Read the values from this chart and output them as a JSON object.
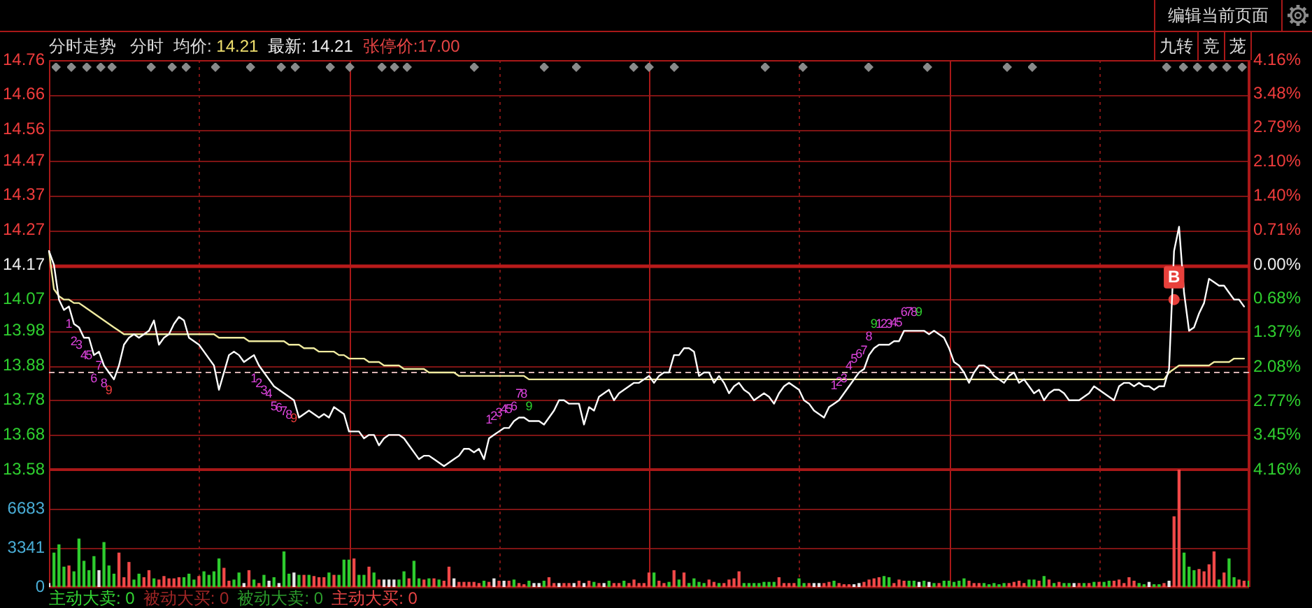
{
  "chart_data": [
    {
      "type": "line",
      "title": "分时走势",
      "annotations": [
        "分时",
        "均价: 14.21",
        "最新: 14.21",
        "张停价:17.00",
        "编辑当前页面",
        "九转",
        "竞",
        "茏",
        "1",
        "2",
        "3",
        "4",
        "5",
        "6",
        "7",
        "8",
        "9",
        "1",
        "2",
        "3",
        "4",
        "5",
        "6",
        "7",
        "8",
        "9",
        "1",
        "2",
        "3",
        "4",
        "5",
        "6",
        "7",
        "8",
        "9",
        "1",
        "2",
        "3",
        "4",
        "5",
        "6",
        "7",
        "8",
        "9",
        "1",
        "2",
        "3",
        "4",
        "5",
        "6",
        "7",
        "8",
        "9"
      ],
      "categories": [
        null,
        null,
        null,
        null,
        null,
        null,
        null,
        null,
        null,
        null,
        null,
        null,
        null,
        null,
        null,
        null,
        null,
        null,
        null,
        null,
        null,
        null,
        null,
        null,
        null,
        null,
        null,
        null,
        null,
        null,
        null,
        null,
        null,
        null,
        null,
        null,
        null,
        null,
        null,
        null,
        null,
        null,
        null,
        null,
        null,
        null,
        null,
        null,
        null,
        null,
        null,
        null,
        null,
        null,
        null,
        null,
        null,
        null,
        null,
        null,
        null,
        null,
        null,
        null,
        null,
        null,
        null,
        null,
        null,
        null,
        null,
        null,
        null,
        null,
        null,
        null,
        null,
        null,
        null,
        null,
        null,
        null,
        null,
        null,
        null,
        null,
        null,
        null,
        null,
        null,
        null,
        null,
        null,
        null,
        null,
        null,
        null,
        null,
        null,
        null,
        null,
        null,
        null,
        null,
        null,
        null,
        null,
        null,
        null,
        null,
        null,
        null,
        null,
        null,
        null,
        null,
        null,
        null,
        null,
        null,
        null,
        null,
        null,
        null,
        null,
        null,
        null,
        null,
        null,
        null,
        null,
        null,
        null,
        null,
        null,
        null,
        null,
        null,
        null,
        null,
        null,
        null,
        null,
        null,
        null,
        null,
        null,
        null,
        null,
        null,
        null,
        null,
        null,
        null,
        null,
        null,
        null,
        null,
        null,
        null,
        null,
        null,
        null,
        null,
        null,
        null,
        null,
        null,
        null,
        null,
        null,
        null,
        null,
        null,
        null,
        null,
        null,
        null,
        null,
        null,
        null,
        null,
        null,
        null,
        null,
        null,
        null,
        null,
        null,
        null,
        null,
        null,
        null,
        null,
        null,
        null,
        null,
        null,
        null,
        null,
        null,
        null,
        null,
        null,
        null,
        null,
        null,
        null,
        null,
        null,
        null,
        null,
        null,
        null,
        null,
        null,
        null,
        null,
        null,
        null,
        null,
        null,
        null,
        null,
        null,
        null,
        null,
        null,
        null,
        null,
        null,
        null,
        null,
        null,
        null,
        null,
        null,
        null,
        null,
        null,
        null
      ],
      "series": [
        {
          "color": "#ffffff",
          "values": [
            14.21,
            14.17,
            14.07,
            14.04,
            14.05,
            14.0,
            13.99,
            13.96,
            13.96,
            13.91,
            13.92,
            13.88,
            13.86,
            13.84,
            13.88,
            13.94,
            13.96,
            13.97,
            13.96,
            13.97,
            13.98,
            14.01,
            13.94,
            13.96,
            13.97,
            14.0,
            14.02,
            14.01,
            13.96,
            13.95,
            13.94,
            13.92,
            13.9,
            13.88,
            13.81,
            13.86,
            13.91,
            13.92,
            13.91,
            13.89,
            13.9,
            13.91,
            13.88,
            13.86,
            13.84,
            13.82,
            13.81,
            13.8,
            13.79,
            13.78,
            13.73,
            13.74,
            13.75,
            13.74,
            13.73,
            13.74,
            13.73,
            13.76,
            13.75,
            13.74,
            13.69,
            13.69,
            13.69,
            13.67,
            13.68,
            13.68,
            13.65,
            13.67,
            13.68,
            13.68,
            13.68,
            13.67,
            13.65,
            13.63,
            13.61,
            13.62,
            13.62,
            13.61,
            13.6,
            13.59,
            13.6,
            13.61,
            13.62,
            13.64,
            13.64,
            13.63,
            13.64,
            13.61,
            13.67,
            13.68,
            13.69,
            13.7,
            13.7,
            13.72,
            13.73,
            13.73,
            13.72,
            13.72,
            13.72,
            13.71,
            13.73,
            13.75,
            13.78,
            13.78,
            13.77,
            13.77,
            13.77,
            13.71,
            13.76,
            13.75,
            13.79,
            13.8,
            13.81,
            13.78,
            13.8,
            13.81,
            13.82,
            13.83,
            13.83,
            13.84,
            13.85,
            13.83,
            13.85,
            13.86,
            13.86,
            13.91,
            13.91,
            13.93,
            13.93,
            13.92,
            13.85,
            13.86,
            13.86,
            13.83,
            13.85,
            13.83,
            13.8,
            13.82,
            13.83,
            13.81,
            13.8,
            13.78,
            13.79,
            13.8,
            13.79,
            13.77,
            13.8,
            13.82,
            13.83,
            13.82,
            13.81,
            13.78,
            13.77,
            13.75,
            13.74,
            13.73,
            13.76,
            13.77,
            13.78,
            13.8,
            13.82,
            13.84,
            13.86,
            13.87,
            13.91,
            13.93,
            13.94,
            13.94,
            13.94,
            13.95,
            13.95,
            13.98,
            13.98,
            13.98,
            13.98,
            13.98,
            13.97,
            13.98,
            13.97,
            13.96,
            13.93,
            13.89,
            13.88,
            13.86,
            13.83,
            13.86,
            13.88,
            13.88,
            13.87,
            13.85,
            13.84,
            13.83,
            13.85,
            13.86,
            13.83,
            13.84,
            13.82,
            13.8,
            13.81,
            13.78,
            13.8,
            13.81,
            13.81,
            13.8,
            13.78,
            13.78,
            13.78,
            13.79,
            13.8,
            13.82,
            13.81,
            13.8,
            13.79,
            13.78,
            13.82,
            13.83,
            13.83,
            13.82,
            13.83,
            13.82,
            13.82,
            13.81,
            13.82,
            13.82,
            13.87,
            14.21,
            14.28,
            14.09,
            13.98,
            13.99,
            14.03,
            14.06,
            14.13,
            14.12,
            14.11,
            14.11,
            14.09,
            14.07,
            14.07,
            14.05,
            null
          ]
        },
        {
          "color": "#f0eba0",
          "values": [
            14.21,
            14.1,
            14.08,
            14.07,
            14.07,
            14.06,
            14.06,
            14.05,
            14.04,
            14.03,
            14.02,
            14.01,
            14.0,
            13.99,
            13.98,
            13.97,
            13.97,
            13.97,
            13.97,
            13.97,
            13.97,
            13.97,
            13.97,
            13.97,
            13.97,
            13.97,
            13.97,
            13.97,
            13.97,
            13.97,
            13.97,
            13.97,
            13.97,
            13.97,
            13.96,
            13.96,
            13.96,
            13.96,
            13.96,
            13.96,
            13.95,
            13.95,
            13.95,
            13.95,
            13.95,
            13.95,
            13.95,
            13.95,
            13.94,
            13.94,
            13.94,
            13.93,
            13.93,
            13.93,
            13.92,
            13.92,
            13.92,
            13.92,
            13.91,
            13.91,
            13.9,
            13.9,
            13.9,
            13.9,
            13.89,
            13.89,
            13.89,
            13.88,
            13.88,
            13.88,
            13.88,
            13.87,
            13.87,
            13.87,
            13.87,
            13.87,
            13.86,
            13.86,
            13.86,
            13.86,
            13.86,
            13.86,
            13.85,
            13.85,
            13.85,
            13.85,
            13.85,
            13.85,
            13.85,
            13.85,
            13.85,
            13.85,
            13.85,
            13.85,
            13.85,
            13.85,
            13.84,
            13.84,
            13.84,
            13.84,
            13.84,
            13.84,
            13.84,
            13.84,
            13.84,
            13.84,
            13.84,
            13.84,
            13.84,
            13.84,
            13.84,
            13.84,
            13.84,
            13.84,
            13.84,
            13.84,
            13.84,
            13.84,
            13.84,
            13.84,
            13.84,
            13.84,
            13.84,
            13.84,
            13.84,
            13.84,
            13.84,
            13.84,
            13.84,
            13.84,
            13.84,
            13.84,
            13.84,
            13.84,
            13.84,
            13.84,
            13.84,
            13.84,
            13.84,
            13.84,
            13.84,
            13.84,
            13.84,
            13.84,
            13.84,
            13.84,
            13.84,
            13.84,
            13.84,
            13.84,
            13.84,
            13.84,
            13.84,
            13.84,
            13.84,
            13.84,
            13.84,
            13.84,
            13.84,
            13.84,
            13.84,
            13.84,
            13.84,
            13.84,
            13.84,
            13.84,
            13.84,
            13.84,
            13.84,
            13.84,
            13.84,
            13.84,
            13.84,
            13.84,
            13.84,
            13.84,
            13.84,
            13.84,
            13.84,
            13.84,
            13.84,
            13.84,
            13.84,
            13.84,
            13.84,
            13.84,
            13.84,
            13.84,
            13.84,
            13.84,
            13.84,
            13.84,
            13.84,
            13.84,
            13.84,
            13.84,
            13.84,
            13.84,
            13.84,
            13.84,
            13.84,
            13.84,
            13.84,
            13.84,
            13.84,
            13.84,
            13.84,
            13.84,
            13.84,
            13.84,
            13.84,
            13.84,
            13.84,
            13.84,
            13.84,
            13.84,
            13.84,
            13.84,
            13.84,
            13.84,
            13.84,
            13.84,
            13.84,
            13.84,
            13.86,
            13.87,
            13.88,
            13.88,
            13.88,
            13.88,
            13.88,
            13.88,
            13.88,
            13.89,
            13.89,
            13.89,
            13.89,
            13.9,
            13.9,
            13.9,
            null
          ]
        },
        {
          "type": "scatter",
          "color": "#e8413c",
          "values": [
            null,
            null,
            null,
            null,
            null,
            null,
            null,
            null,
            null,
            null,
            null,
            null,
            null,
            null,
            null,
            null,
            null,
            null,
            null,
            null,
            null,
            null,
            null,
            null,
            null,
            null,
            null,
            null,
            null,
            null,
            null,
            null,
            null,
            null,
            null,
            null,
            null,
            null,
            null,
            null,
            null,
            null,
            null,
            null,
            null,
            null,
            null,
            null,
            null,
            null,
            null,
            null,
            null,
            null,
            null,
            null,
            null,
            null,
            null,
            null,
            null,
            null,
            null,
            null,
            null,
            null,
            null,
            null,
            null,
            null,
            null,
            null,
            null,
            null,
            null,
            null,
            null,
            null,
            null,
            null,
            null,
            null,
            null,
            null,
            null,
            null,
            null,
            null,
            null,
            null,
            null,
            null,
            null,
            null,
            null,
            null,
            null,
            null,
            null,
            null,
            null,
            null,
            null,
            null,
            null,
            null,
            null,
            null,
            null,
            null,
            null,
            null,
            null,
            null,
            null,
            null,
            null,
            null,
            null,
            null,
            null,
            null,
            null,
            null,
            null,
            null,
            null,
            null,
            null,
            null,
            null,
            null,
            null,
            null,
            null,
            null,
            null,
            null,
            null,
            null,
            null,
            null,
            null,
            null,
            null,
            null,
            null,
            null,
            null,
            null,
            null,
            null,
            null,
            null,
            null,
            null,
            null,
            null,
            null,
            null,
            null,
            null,
            null,
            null,
            null,
            null,
            null,
            null,
            null,
            null,
            null,
            null,
            null,
            null,
            null,
            null,
            null,
            null,
            null,
            null,
            null,
            null,
            null,
            null,
            null,
            null,
            null,
            null,
            null,
            null,
            null,
            null,
            null,
            null,
            null,
            null,
            null,
            null,
            null,
            null,
            null,
            null,
            null,
            null,
            null,
            null,
            null,
            null,
            null,
            null,
            null,
            null,
            null,
            null,
            null,
            null,
            null,
            null,
            null,
            null,
            null,
            null,
            null,
            null,
            null,
            14.07,
            null,
            null,
            null,
            null,
            null,
            null,
            null,
            null,
            null,
            null,
            null,
            null,
            null,
            null,
            null
          ],
          "value_labels": [
            null,
            null,
            null,
            null,
            null,
            null,
            null,
            null,
            null,
            null,
            null,
            null,
            null,
            null,
            null,
            null,
            null,
            null,
            null,
            null,
            null,
            null,
            null,
            null,
            null,
            null,
            null,
            null,
            null,
            null,
            null,
            null,
            null,
            null,
            null,
            null,
            null,
            null,
            null,
            null,
            null,
            null,
            null,
            null,
            null,
            null,
            null,
            null,
            null,
            null,
            null,
            null,
            null,
            null,
            null,
            null,
            null,
            null,
            null,
            null,
            null,
            null,
            null,
            null,
            null,
            null,
            null,
            null,
            null,
            null,
            null,
            null,
            null,
            null,
            null,
            null,
            null,
            null,
            null,
            null,
            null,
            null,
            null,
            null,
            null,
            null,
            null,
            null,
            null,
            null,
            null,
            null,
            null,
            null,
            null,
            null,
            null,
            null,
            null,
            null,
            null,
            null,
            null,
            null,
            null,
            null,
            null,
            null,
            null,
            null,
            null,
            null,
            null,
            null,
            null,
            null,
            null,
            null,
            null,
            null,
            null,
            null,
            null,
            null,
            null,
            null,
            null,
            null,
            null,
            null,
            null,
            null,
            null,
            null,
            null,
            null,
            null,
            null,
            null,
            null,
            null,
            null,
            null,
            null,
            null,
            null,
            null,
            null,
            null,
            null,
            null,
            null,
            null,
            null,
            null,
            null,
            null,
            null,
            null,
            null,
            null,
            null,
            null,
            null,
            null,
            null,
            null,
            null,
            null,
            null,
            null,
            null,
            null,
            null,
            null,
            null,
            null,
            null,
            null,
            null,
            null,
            null,
            null,
            null,
            null,
            null,
            null,
            null,
            null,
            null,
            null,
            null,
            null,
            null,
            null,
            null,
            null,
            null,
            null,
            null,
            null,
            null,
            null,
            null,
            null,
            null,
            null,
            null,
            null,
            null,
            null,
            null,
            null,
            null,
            null,
            null,
            null,
            null,
            null,
            null,
            null,
            null,
            null,
            null,
            null,
            "B",
            null,
            null,
            null,
            null,
            null,
            null,
            null,
            null,
            null,
            null,
            null,
            null,
            null,
            null,
            null
          ]
        }
      ],
      "ylim": [
        13.58,
        14.76
      ],
      "yticks": [
        14.76,
        14.66,
        14.56,
        14.47,
        14.37,
        14.27,
        14.17,
        14.07,
        13.98,
        13.88,
        13.78,
        13.68,
        13.58
      ],
      "y2lim": [
        -4.16,
        4.16
      ],
      "y2ticks": [
        {
          "value": 4.16,
          "label": "4.16%"
        },
        {
          "value": 3.48,
          "label": "3.48%"
        },
        {
          "value": 2.79,
          "label": "2.79%"
        },
        {
          "value": 2.1,
          "label": "2.10%"
        },
        {
          "value": 1.4,
          "label": "1.40%"
        },
        {
          "value": 0.71,
          "label": "0.71%"
        },
        {
          "value": 0,
          "label": "0.00%"
        },
        {
          "value": -0.68,
          "label": "0.68%"
        },
        {
          "value": -1.37,
          "label": "1.37%"
        },
        {
          "value": -2.08,
          "label": "2.08%"
        },
        {
          "value": -2.77,
          "label": "2.77%"
        },
        {
          "value": -3.45,
          "label": "3.45%"
        },
        {
          "value": -4.16,
          "label": "4.16%"
        }
      ],
      "grid": true,
      "ref_lines": [
        {
          "axis": "y",
          "value": 14.17,
          "color": "#b81a1a"
        },
        {
          "axis": "y",
          "value": 13.86,
          "color": "#d9b3b3",
          "line_style": "dashed"
        }
      ]
    },
    {
      "type": "bar",
      "annotations": [
        "主动大卖: 0",
        "被动大买: 0",
        "被动大卖: 0",
        "主动大买: 0"
      ],
      "categories": [
        null,
        null,
        null,
        null,
        null,
        null,
        null,
        null,
        null,
        null,
        null,
        null,
        null,
        null,
        null,
        null,
        null,
        null,
        null,
        null,
        null,
        null,
        null,
        null,
        null,
        null,
        null,
        null,
        null,
        null,
        null,
        null,
        null,
        null,
        null,
        null,
        null,
        null,
        null,
        null,
        null,
        null,
        null,
        null,
        null,
        null,
        null,
        null,
        null,
        null,
        null,
        null,
        null,
        null,
        null,
        null,
        null,
        null,
        null,
        null,
        null,
        null,
        null,
        null,
        null,
        null,
        null,
        null,
        null,
        null,
        null,
        null,
        null,
        null,
        null,
        null,
        null,
        null,
        null,
        null,
        null,
        null,
        null,
        null,
        null,
        null,
        null,
        null,
        null,
        null,
        null,
        null,
        null,
        null,
        null,
        null,
        null,
        null,
        null,
        null,
        null,
        null,
        null,
        null,
        null,
        null,
        null,
        null,
        null,
        null,
        null,
        null,
        null,
        null,
        null,
        null,
        null,
        null,
        null,
        null,
        null,
        null,
        null,
        null,
        null,
        null,
        null,
        null,
        null,
        null,
        null,
        null,
        null,
        null,
        null,
        null,
        null,
        null,
        null,
        null,
        null,
        null,
        null,
        null,
        null,
        null,
        null,
        null,
        null,
        null,
        null,
        null,
        null,
        null,
        null,
        null,
        null,
        null,
        null,
        null,
        null,
        null,
        null,
        null,
        null,
        null,
        null,
        null,
        null,
        null,
        null,
        null,
        null,
        null,
        null,
        null,
        null,
        null,
        null,
        null,
        null,
        null,
        null,
        null,
        null,
        null,
        null,
        null,
        null,
        null,
        null,
        null,
        null,
        null,
        null,
        null,
        null,
        null,
        null,
        null,
        null,
        null,
        null,
        null,
        null,
        null,
        null,
        null,
        null,
        null,
        null,
        null,
        null,
        null,
        null,
        null,
        null,
        null,
        null,
        null,
        null,
        null,
        null,
        null,
        null,
        null,
        null,
        null,
        null,
        null,
        null,
        null,
        null,
        null,
        null,
        null,
        null,
        null,
        null,
        null,
        null
      ],
      "values": [
        300,
        2900,
        3600,
        1700,
        1800,
        1300,
        4100,
        2200,
        1400,
        2600,
        1400,
        3800,
        1800,
        1100,
        2900,
        800,
        2100,
        600,
        1100,
        800,
        1400,
        700,
        600,
        900,
        700,
        700,
        800,
        800,
        1100,
        600,
        900,
        1300,
        1000,
        1300,
        2400,
        1600,
        500,
        600,
        1200,
        300,
        1400,
        600,
        300,
        1000,
        500,
        800,
        300,
        3000,
        1100,
        1200,
        1000,
        1000,
        1000,
        900,
        800,
        800,
        1200,
        1000,
        1000,
        2300,
        2300,
        2400,
        1000,
        1000,
        1700,
        1200,
        600,
        600,
        600,
        600,
        600,
        1300,
        700,
        2200,
        700,
        600,
        700,
        700,
        600,
        500,
        1700,
        700,
        400,
        400,
        400,
        400,
        300,
        500,
        400,
        700,
        500,
        500,
        500,
        600,
        300,
        200,
        500,
        300,
        300,
        500,
        800,
        300,
        300,
        300,
        300,
        300,
        500,
        300,
        500,
        400,
        300,
        300,
        500,
        300,
        300,
        500,
        300,
        600,
        300,
        300,
        1200,
        1200,
        500,
        300,
        400,
        1400,
        600,
        1200,
        300,
        700,
        400,
        300,
        600,
        400,
        300,
        300,
        600,
        700,
        1300,
        300,
        300,
        300,
        300,
        400,
        400,
        400,
        800,
        300,
        300,
        300,
        700,
        300,
        300,
        300,
        300,
        300,
        400,
        500,
        300,
        200,
        200,
        200,
        300,
        400,
        600,
        700,
        800,
        900,
        800,
        300,
        600,
        500,
        500,
        500,
        400,
        500,
        400,
        300,
        300,
        500,
        500,
        400,
        500,
        700,
        500,
        300,
        300,
        300,
        200,
        300,
        200,
        300,
        300,
        400,
        500,
        300,
        600,
        600,
        500,
        900,
        600,
        300,
        400,
        300,
        300,
        300,
        300,
        300,
        300,
        400,
        400,
        400,
        500,
        500,
        600,
        300,
        800,
        500,
        300,
        200,
        400,
        200,
        200,
        300,
        500,
        6000,
        10000,
        2900,
        1700,
        1400,
        1500,
        1300,
        1900,
        3000,
        600,
        1200,
        2400,
        800,
        600,
        500,
        500
      ],
      "colors": [
        "#e6e6e6",
        "#2ecc2e",
        "#2ecc2e",
        "#2ecc2e",
        "#f04848",
        "#2ecc2e",
        "#2ecc2e",
        "#2ecc2e",
        "#2ecc2e",
        "#2ecc2e",
        "#e6e6e6",
        "#2ecc2e",
        "#2ecc2e",
        "#2ecc2e",
        "#f04848",
        "#f04848",
        "#f04848",
        "#2ecc2e",
        "#2ecc2e",
        "#f04848",
        "#f04848",
        "#2ecc2e",
        "#f04848",
        "#f04848",
        "#f04848",
        "#f04848",
        "#f04848",
        "#2ecc2e",
        "#2ecc2e",
        "#2ecc2e",
        "#f04848",
        "#2ecc2e",
        "#2ecc2e",
        "#2ecc2e",
        "#2ecc2e",
        "#f04848",
        "#f04848",
        "#2ecc2e",
        "#2ecc2e",
        "#e6e6e6",
        "#f04848",
        "#2ecc2e",
        "#f04848",
        "#2ecc2e",
        "#e6e6e6",
        "#2ecc2e",
        "#e6e6e6",
        "#2ecc2e",
        "#2ecc2e",
        "#e6e6e6",
        "#2ecc2e",
        "#f04848",
        "#2ecc2e",
        "#f04848",
        "#f04848",
        "#f04848",
        "#2ecc2e",
        "#f04848",
        "#2ecc2e",
        "#2ecc2e",
        "#2ecc2e",
        "#f04848",
        "#2ecc2e",
        "#2ecc2e",
        "#f04848",
        "#2ecc2e",
        "#f04848",
        "#e6e6e6",
        "#e6e6e6",
        "#e6e6e6",
        "#2ecc2e",
        "#2ecc2e",
        "#f04848",
        "#2ecc2e",
        "#2ecc2e",
        "#f04848",
        "#2ecc2e",
        "#f04848",
        "#2ecc2e",
        "#f04848",
        "#f04848",
        "#e6e6e6",
        "#f04848",
        "#f04848",
        "#f04848",
        "#f04848",
        "#f04848",
        "#2ecc2e",
        "#f04848",
        "#e6e6e6",
        "#f04848",
        "#e6e6e6",
        "#f04848",
        "#2ecc2e",
        "#f04848",
        "#f04848",
        "#2ecc2e",
        "#e6e6e6",
        "#e6e6e6",
        "#2ecc2e",
        "#f04848",
        "#f04848",
        "#e6e6e6",
        "#f04848",
        "#f04848",
        "#e6e6e6",
        "#f04848",
        "#e6e6e6",
        "#f04848",
        "#2ecc2e",
        "#f04848",
        "#e6e6e6",
        "#2ecc2e",
        "#f04848",
        "#f04848",
        "#2ecc2e",
        "#f04848",
        "#f04848",
        "#f04848",
        "#f04848",
        "#f04848",
        "#2ecc2e",
        "#f04848",
        "#f04848",
        "#2ecc2e",
        "#f04848",
        "#2ecc2e",
        "#f04848",
        "#2ecc2e",
        "#2ecc2e",
        "#2ecc2e",
        "#2ecc2e",
        "#f04848",
        "#f04848",
        "#2ecc2e",
        "#f04848",
        "#f04848",
        "#f04848",
        "#f04848",
        "#2ecc2e",
        "#2ecc2e",
        "#2ecc2e",
        "#2ecc2e",
        "#2ecc2e",
        "#2ecc2e",
        "#2ecc2e",
        "#f04848",
        "#f04848",
        "#f04848",
        "#f04848",
        "#2ecc2e",
        "#2ecc2e",
        "#f04848",
        "#e6e6e6",
        "#e6e6e6",
        "#f04848",
        "#f04848",
        "#2ecc2e",
        "#f04848",
        "#f04848",
        "#f04848",
        "#e6e6e6",
        "#e6e6e6",
        "#f04848",
        "#f04848",
        "#f04848",
        "#f04848",
        "#2ecc2e",
        "#2ecc2e",
        "#f04848",
        "#f04848",
        "#f04848",
        "#2ecc2e",
        "#2ecc2e",
        "#e6e6e6",
        "#2ecc2e",
        "#e6e6e6",
        "#2ecc2e",
        "#f04848",
        "#2ecc2e",
        "#2ecc2e",
        "#2ecc2e",
        "#2ecc2e",
        "#2ecc2e",
        "#f04848",
        "#f04848",
        "#f04848",
        "#2ecc2e",
        "#2ecc2e",
        "#2ecc2e",
        "#2ecc2e",
        "#2ecc2e",
        "#f04848",
        "#f04848",
        "#f04848",
        "#f04848",
        "#2ecc2e",
        "#2ecc2e",
        "#f04848",
        "#2ecc2e",
        "#f04848",
        "#2ecc2e",
        "#f04848",
        "#2ecc2e",
        "#2ecc2e",
        "#e6e6e6",
        "#f04848",
        "#2ecc2e",
        "#f04848",
        "#2ecc2e",
        "#f04848",
        "#2ecc2e",
        "#2ecc2e",
        "#f04848",
        "#f04848",
        "#f04848",
        "#f04848",
        "#f04848",
        "#2ecc2e",
        "#2ecc2e",
        "#e6e6e6",
        "#2ecc2e",
        "#2ecc2e",
        "#f04848",
        "#e6e6e6",
        "#f04848",
        "#f04848",
        "#2ecc2e",
        "#2ecc2e",
        "#2ecc2e",
        "#f04848",
        "#f04848",
        "#f04848",
        "#f04848",
        "#2ecc2e",
        "#f04848",
        "#2ecc2e",
        "#2ecc2e",
        "#f04848",
        "#f04848",
        "#2ecc2e"
      ],
      "ylim": [
        0,
        10024
      ],
      "yticks": [
        0,
        3341,
        6683
      ],
      "grid": true
    }
  ]
}
